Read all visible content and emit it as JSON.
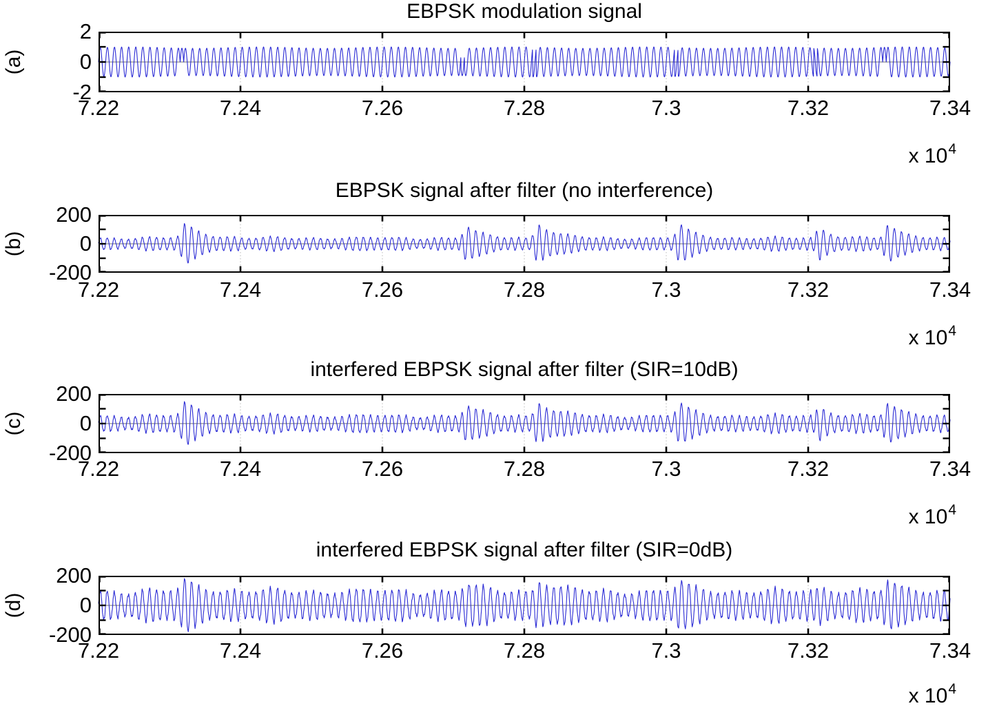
{
  "figure": {
    "kind": "matlab-style multi-panel signal figure",
    "x_offset_label": "x 10",
    "x_offset_exponent": "4",
    "colors": {
      "signal_line": "#2b2bd5",
      "axis_box": "#000000",
      "grid_line": "#b8b8b8",
      "zero_line": "#8a8a8a",
      "background": "#ffffff"
    }
  },
  "chart_data": [
    {
      "type": "line",
      "id": "a",
      "row_label": "(a)",
      "title": "EBPSK modulation signal",
      "xlim": [
        72200,
        73400
      ],
      "ylim": [
        -2,
        2
      ],
      "x_tick_labels": [
        "7.22",
        "7.24",
        "7.26",
        "7.28",
        "7.3",
        "7.32",
        "7.34"
      ],
      "x_tick_values": [
        72200,
        72400,
        72600,
        72800,
        73000,
        73200,
        73400
      ],
      "y_tick_labels": [
        "2",
        "0",
        "-2"
      ],
      "y_tick_values": [
        2,
        0,
        -2
      ],
      "x_offset_label": "x 10",
      "x_offset_exponent": "4",
      "grid": true,
      "legend": null,
      "signal": {
        "kind": "ebpsk_carrier",
        "carrier_period_samples": 10,
        "amplitude": 0.95,
        "modulation_positions": [
          72315,
          72711,
          72812,
          73012,
          73208,
          73305
        ]
      }
    },
    {
      "type": "line",
      "id": "b",
      "row_label": "(b)",
      "title": "EBPSK signal after filter (no interference)",
      "xlim": [
        72200,
        73400
      ],
      "ylim": [
        -200,
        200
      ],
      "x_tick_labels": [
        "7.22",
        "7.24",
        "7.26",
        "7.28",
        "7.3",
        "7.32",
        "7.34"
      ],
      "x_tick_values": [
        72200,
        72400,
        72600,
        72800,
        73000,
        73200,
        73400
      ],
      "y_tick_labels": [
        "200",
        "0",
        "-200"
      ],
      "y_tick_values": [
        200,
        0,
        -200
      ],
      "x_offset_label": "x 10",
      "x_offset_exponent": "4",
      "grid": true,
      "legend": null,
      "signal": {
        "kind": "filtered",
        "carrier_period_samples": 10,
        "base_amplitude": 40,
        "burst_amplitude": 105,
        "noise_amplitude": 6,
        "burst_positions": [
          72315,
          72711,
          72812,
          73012,
          73208,
          73305
        ]
      }
    },
    {
      "type": "line",
      "id": "c",
      "row_label": "(c)",
      "title": "interfered EBPSK signal after filter (SIR=10dB)",
      "xlim": [
        72200,
        73400
      ],
      "ylim": [
        -200,
        200
      ],
      "x_tick_labels": [
        "7.22",
        "7.24",
        "7.26",
        "7.28",
        "7.3",
        "7.32",
        "7.34"
      ],
      "x_tick_values": [
        72200,
        72400,
        72600,
        72800,
        73000,
        73200,
        73400
      ],
      "y_tick_labels": [
        "200",
        "0",
        "-200"
      ],
      "y_tick_values": [
        200,
        0,
        -200
      ],
      "x_offset_label": "x 10",
      "x_offset_exponent": "4",
      "grid": true,
      "legend": null,
      "signal": {
        "kind": "filtered",
        "carrier_period_samples": 10,
        "base_amplitude": 52,
        "burst_amplitude": 100,
        "noise_amplitude": 9,
        "burst_positions": [
          72315,
          72711,
          72812,
          73012,
          73208,
          73305
        ]
      }
    },
    {
      "type": "line",
      "id": "d",
      "row_label": "(d)",
      "title": "interfered EBPSK signal after filter (SIR=0dB)",
      "xlim": [
        72200,
        73400
      ],
      "ylim": [
        -200,
        200
      ],
      "x_tick_labels": [
        "7.22",
        "7.24",
        "7.26",
        "7.28",
        "7.3",
        "7.32",
        "7.34"
      ],
      "x_tick_values": [
        72200,
        72400,
        72600,
        72800,
        73000,
        73200,
        73400
      ],
      "y_tick_labels": [
        "200",
        "0",
        "-200"
      ],
      "y_tick_values": [
        200,
        0,
        -200
      ],
      "x_offset_label": "x 10",
      "x_offset_exponent": "4",
      "grid": true,
      "legend": null,
      "signal": {
        "kind": "filtered",
        "carrier_period_samples": 10,
        "base_amplitude": 95,
        "burst_amplitude": 85,
        "noise_amplitude": 14,
        "burst_positions": [
          72315,
          72711,
          72812,
          73012,
          73208,
          73305
        ]
      }
    }
  ]
}
